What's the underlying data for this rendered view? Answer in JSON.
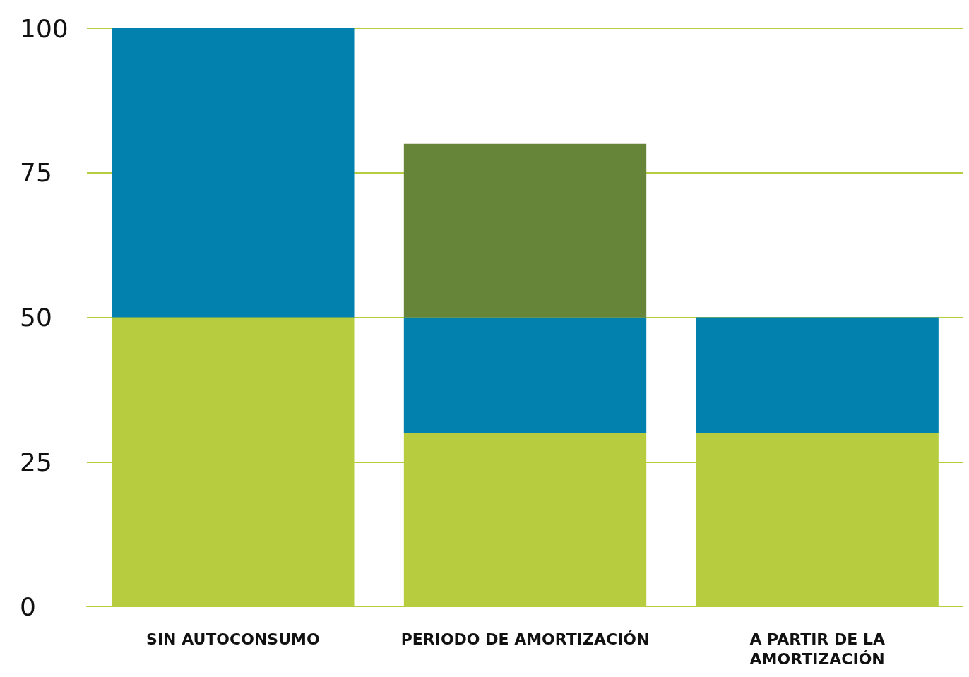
{
  "chart_data": {
    "type": "bar",
    "stacked": true,
    "categories": [
      "SIN AUTOCONSUMO",
      "PERIODO DE AMORTIZACIÓN",
      "A PARTIR DE LA\nAMORTIZACIÓN"
    ],
    "series": [
      {
        "color": "#b7cd3f",
        "values": [
          50,
          30,
          30
        ]
      },
      {
        "color": "#0280ae",
        "values": [
          50,
          20,
          20
        ]
      },
      {
        "color": "#678539",
        "values": [
          null,
          30,
          null
        ]
      }
    ],
    "ylim": [
      0,
      100
    ],
    "yticks": [
      0,
      25,
      50,
      75,
      100
    ],
    "grid": "y"
  }
}
